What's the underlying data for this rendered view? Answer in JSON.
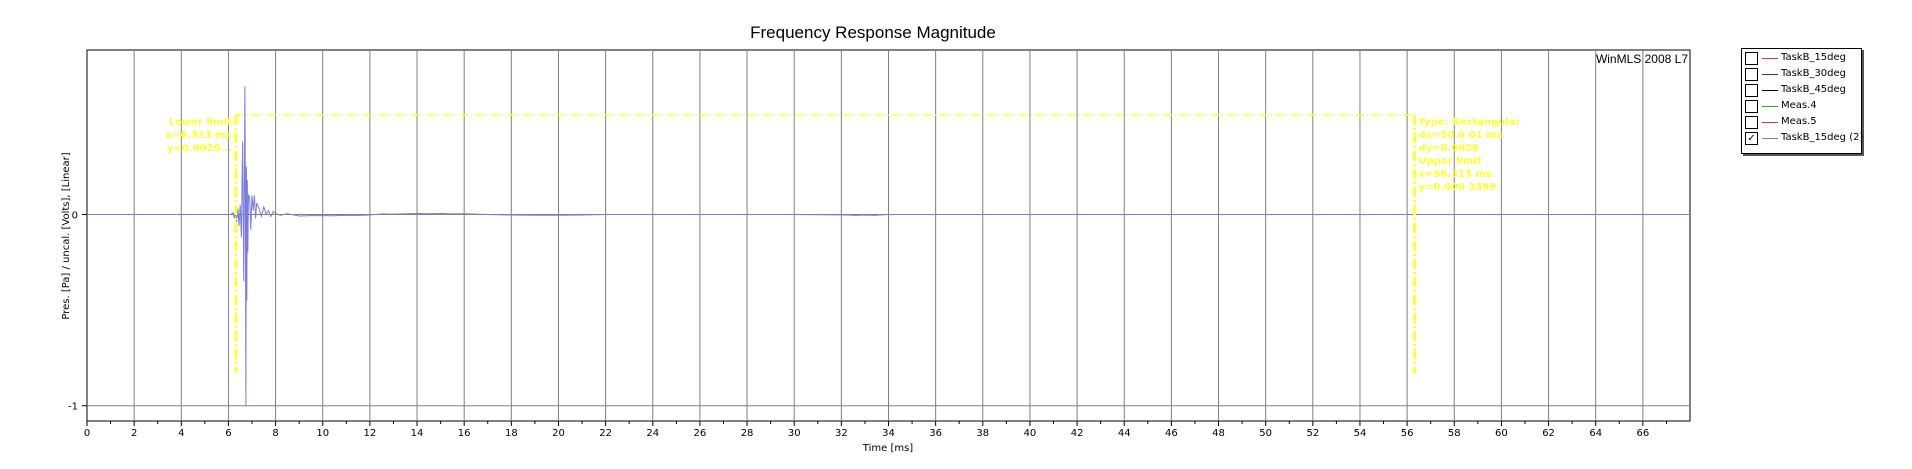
{
  "chart_data": {
    "type": "line",
    "title": "Frequency Response Magnitude",
    "xlabel": "Time [ms]",
    "ylabel": "Pres. [Pa] / uncal. [Volts], [Linear]",
    "watermark": "WinMLS 2008 L7",
    "xlim": [
      0,
      68
    ],
    "ylim": [
      -1.08,
      0.86
    ],
    "xticks": [
      0,
      2,
      4,
      6,
      8,
      10,
      12,
      14,
      16,
      18,
      20,
      22,
      24,
      26,
      28,
      30,
      32,
      34,
      36,
      38,
      40,
      42,
      44,
      46,
      48,
      50,
      52,
      54,
      56,
      58,
      60,
      62,
      64,
      66
    ],
    "yticks": [
      0,
      -1
    ],
    "grid": true,
    "series": [
      {
        "name": "TaskB_15deg (2)",
        "color": "#7b7bdc",
        "x": [
          0,
          6.1,
          6.2,
          6.25,
          6.3,
          6.35,
          6.4,
          6.45,
          6.5,
          6.55,
          6.6,
          6.65,
          6.7,
          6.72,
          6.74,
          6.76,
          6.78,
          6.8,
          6.82,
          6.85,
          6.9,
          6.95,
          7.0,
          7.05,
          7.1,
          7.15,
          7.2,
          7.3,
          7.4,
          7.5,
          7.6,
          7.7,
          7.8,
          7.9,
          8.0,
          8.2,
          8.5,
          9.0,
          9.5,
          10.0,
          10.5,
          11.0,
          11.5,
          12.0,
          12.5,
          13.0,
          13.5,
          14.0,
          14.5,
          15.0,
          15.5,
          16.0,
          17.0,
          18.0,
          19.0,
          20.0,
          21.0,
          22.0,
          23.0,
          30.0,
          32.3,
          32.6,
          33.0,
          33.4,
          33.8,
          34.0,
          40.0,
          50.0,
          60.0,
          68.0
        ],
        "y": [
          0,
          0,
          0.01,
          -0.02,
          0.02,
          -0.04,
          0.03,
          -0.06,
          0.05,
          -0.12,
          0.38,
          -0.35,
          0.67,
          0.1,
          -1.0,
          0.25,
          -0.45,
          0.18,
          -0.2,
          0.1,
          0.09,
          -0.08,
          0.1,
          0.02,
          0.1,
          -0.02,
          0.06,
          0.03,
          -0.01,
          0.04,
          0.0,
          0.02,
          -0.01,
          0.015,
          0.005,
          -0.005,
          0.004,
          -0.008,
          -0.006,
          -0.006,
          -0.007,
          -0.004,
          -0.005,
          -0.003,
          0.003,
          0.002,
          0.004,
          0.005,
          0.004,
          0.005,
          0.003,
          0.004,
          0.0,
          -0.003,
          -0.004,
          -0.004,
          -0.003,
          0.0,
          0.0,
          0.0,
          -0.003,
          -0.005,
          -0.003,
          -0.005,
          -0.002,
          0.0,
          0.0,
          0.0,
          0.0,
          0.0
        ]
      }
    ],
    "window": {
      "lower_x": 6.313,
      "upper_x": 56.313,
      "top_y": 0.52,
      "bottom_y": -0.83,
      "color": "#ffff33",
      "lower_label": [
        "Lower limit",
        "x=6.313 ms",
        "y=0.0029..."
      ],
      "upper_label": [
        "Type: Rectangular",
        "dx=50.0 01 ms",
        "dy=0.0026",
        "Upper limit",
        "x=56.313 ms",
        "y=0.000 3599"
      ]
    }
  },
  "legend": {
    "items": [
      {
        "label": "TaskB_15deg",
        "color": "#e03030",
        "checked": ""
      },
      {
        "label": "TaskB_30deg",
        "color": "#2030c0",
        "checked": ""
      },
      {
        "label": "TaskB_45deg",
        "color": "#000000",
        "checked": ""
      },
      {
        "label": "Meas.4",
        "color": "#30a030",
        "checked": ""
      },
      {
        "label": "Meas.5",
        "color": "#d03050",
        "checked": ""
      },
      {
        "label": "TaskB_15deg (2)",
        "color": "#7b7bdc",
        "checked": "✓"
      }
    ]
  }
}
